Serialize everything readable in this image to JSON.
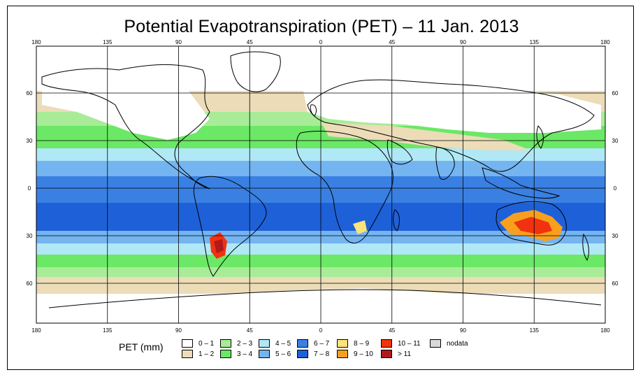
{
  "title": "Potential Evapotranspiration (PET) – 11 Jan. 2013",
  "longitude_ticks": [
    "180",
    "135",
    "90",
    "45",
    "0",
    "45",
    "90",
    "135",
    "180"
  ],
  "latitude_ticks": [
    "60",
    "30",
    "0",
    "30",
    "60"
  ],
  "legend": {
    "label": "PET (mm)",
    "items": [
      {
        "label": "0 – 1",
        "color": "#ffffff"
      },
      {
        "label": "1 – 2",
        "color": "#ecdcb8"
      },
      {
        "label": "2 – 3",
        "color": "#a8ec98"
      },
      {
        "label": "3 – 4",
        "color": "#6be865"
      },
      {
        "label": "4 – 5",
        "color": "#b0e8f6"
      },
      {
        "label": "5 – 6",
        "color": "#74b4f0"
      },
      {
        "label": "6 – 7",
        "color": "#3a80e2"
      },
      {
        "label": "7 – 8",
        "color": "#1e60d8"
      },
      {
        "label": "8 – 9",
        "color": "#fce37a"
      },
      {
        "label": "9 – 10",
        "color": "#f8a01e"
      },
      {
        "label": "10 – 11",
        "color": "#f03210"
      },
      {
        "label": "> 11",
        "color": "#b01a1a"
      },
      {
        "label": "nodata",
        "color": "#d8d8d8"
      }
    ]
  }
}
